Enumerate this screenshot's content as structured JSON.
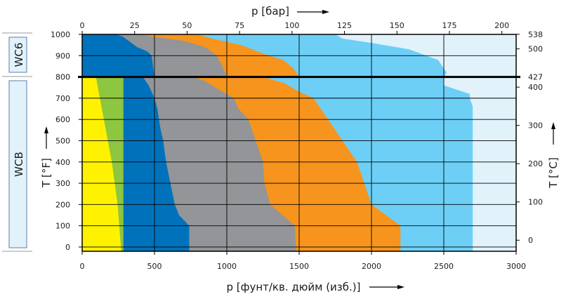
{
  "colors": {
    "yellow": "#fff200",
    "green": "#8dc63f",
    "dark_blue": "#0072bc",
    "gray": "#939598",
    "orange": "#f7941d",
    "light_blue": "#6dcff6",
    "pale_blue": "#e1f2fb",
    "grid": "#000000"
  },
  "chart_data": {
    "type": "area",
    "title": "",
    "x_bottom": {
      "label": "p [фунт/кв. дюйм (изб.)]",
      "range": [
        0,
        3000
      ],
      "ticks": [
        0,
        500,
        1000,
        1500,
        2000,
        2500,
        3000
      ]
    },
    "x_top": {
      "label": "p [бар]",
      "range": [
        0,
        206.8
      ],
      "ticks": [
        0,
        25,
        50,
        75,
        100,
        125,
        150,
        175,
        200
      ]
    },
    "y_left": {
      "label": "T [°F]",
      "range": [
        -20,
        1000
      ],
      "ticks": [
        0,
        100,
        200,
        300,
        400,
        500,
        600,
        700,
        800,
        900,
        1000
      ]
    },
    "y_right": {
      "label": "T [°C]",
      "range": [
        -28.9,
        537.8
      ],
      "ticks": [
        0,
        100,
        200,
        300,
        400,
        427,
        500,
        538
      ]
    },
    "materials": [
      {
        "label": "WC6",
        "t_range_F": [
          800,
          1000
        ]
      },
      {
        "label": "WCB",
        "t_range_F": [
          -20,
          800
        ]
      }
    ],
    "boundary_F": 800,
    "grid": true,
    "series": [
      {
        "color": "light_blue",
        "points": [
          [
            2700,
            -20
          ],
          [
            2700,
            660
          ],
          [
            2680,
            700
          ],
          [
            2680,
            720
          ],
          [
            2500,
            760
          ],
          [
            2500,
            800
          ],
          [
            2520,
            820
          ],
          [
            2460,
            880
          ],
          [
            2260,
            930
          ],
          [
            2000,
            960
          ],
          [
            1800,
            980
          ],
          [
            1750,
            1000
          ]
        ]
      },
      {
        "color": "orange",
        "points": [
          [
            2200,
            -20
          ],
          [
            2200,
            100
          ],
          [
            2000,
            200
          ],
          [
            1950,
            300
          ],
          [
            1900,
            400
          ],
          [
            1800,
            500
          ],
          [
            1700,
            600
          ],
          [
            1650,
            650
          ],
          [
            1600,
            700
          ],
          [
            1500,
            730
          ],
          [
            1400,
            770
          ],
          [
            1300,
            790
          ],
          [
            1270,
            800
          ],
          [
            1500,
            800
          ],
          [
            1460,
            840
          ],
          [
            1390,
            880
          ],
          [
            1250,
            910
          ],
          [
            1100,
            950
          ],
          [
            900,
            980
          ],
          [
            800,
            1000
          ]
        ]
      },
      {
        "color": "gray",
        "points": [
          [
            1480,
            -20
          ],
          [
            1470,
            100
          ],
          [
            1300,
            200
          ],
          [
            1260,
            300
          ],
          [
            1250,
            400
          ],
          [
            1200,
            500
          ],
          [
            1150,
            600
          ],
          [
            1080,
            650
          ],
          [
            1050,
            700
          ],
          [
            920,
            750
          ],
          [
            850,
            780
          ],
          [
            770,
            800
          ],
          [
            1000,
            800
          ],
          [
            970,
            850
          ],
          [
            930,
            900
          ],
          [
            850,
            940
          ],
          [
            700,
            970
          ],
          [
            480,
            990
          ],
          [
            390,
            1000
          ]
        ]
      },
      {
        "color": "dark_blue",
        "points": [
          [
            740,
            -20
          ],
          [
            740,
            100
          ],
          [
            670,
            150
          ],
          [
            640,
            200
          ],
          [
            610,
            300
          ],
          [
            580,
            400
          ],
          [
            560,
            500
          ],
          [
            540,
            560
          ],
          [
            520,
            650
          ],
          [
            500,
            700
          ],
          [
            460,
            760
          ],
          [
            420,
            800
          ],
          [
            500,
            800
          ],
          [
            480,
            900
          ],
          [
            450,
            920
          ],
          [
            380,
            940
          ],
          [
            280,
            990
          ],
          [
            230,
            1000
          ]
        ]
      },
      {
        "color": "green",
        "points": [
          [
            285,
            -20
          ],
          [
            285,
            800
          ]
        ]
      },
      {
        "color": "yellow",
        "points": [
          [
            270,
            -20
          ],
          [
            245,
            200
          ],
          [
            205,
            400
          ],
          [
            150,
            600
          ],
          [
            95,
            800
          ]
        ]
      }
    ]
  }
}
